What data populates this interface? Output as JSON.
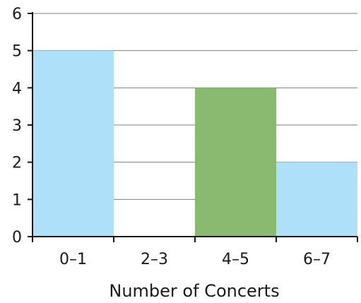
{
  "chart_data": {
    "type": "bar",
    "title": "",
    "xlabel": "Number of Concerts",
    "ylabel": "",
    "categories": [
      "0–1",
      "2–3",
      "4–5",
      "6–7"
    ],
    "values": [
      5,
      0,
      4,
      2
    ],
    "bar_colors": [
      "#aee0fa",
      "#aee0fa",
      "#8aba6f",
      "#aee0fa"
    ],
    "ylim": [
      0,
      6
    ],
    "yticks": [
      "0",
      "1",
      "2",
      "3",
      "4",
      "5",
      "6"
    ],
    "grid": true,
    "gridline_color": "#7f7f7f",
    "axis_color": "#1a1a1a"
  }
}
